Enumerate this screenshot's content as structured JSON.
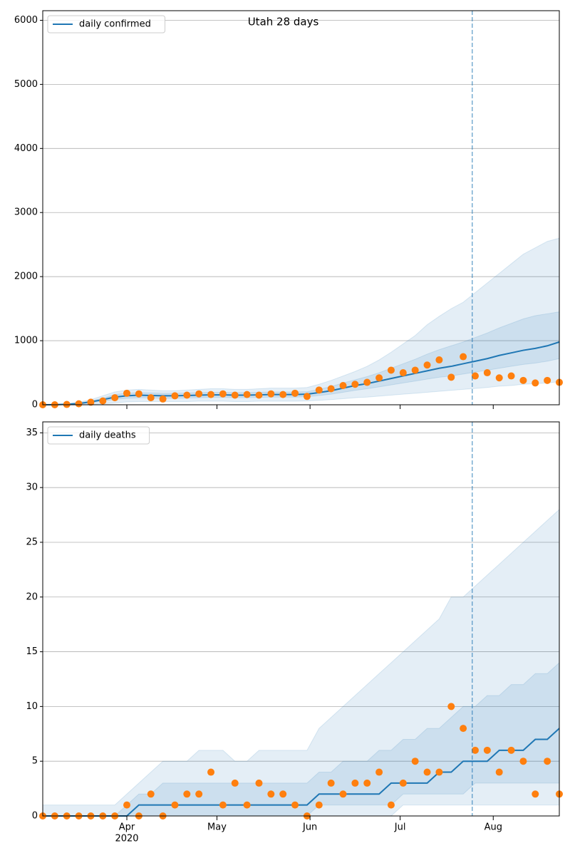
{
  "chart_data": [
    {
      "type": "line",
      "title": "Utah 28 days",
      "x": [
        64,
        68,
        72,
        76,
        80,
        84,
        88,
        92,
        96,
        100,
        104,
        108,
        112,
        116,
        120,
        124,
        128,
        132,
        136,
        140,
        144,
        148,
        152,
        156,
        160,
        164,
        168,
        172,
        176,
        180,
        184,
        188,
        192,
        196,
        200,
        204,
        208,
        212,
        216,
        220,
        224,
        228,
        232,
        236
      ],
      "xlim": [
        64,
        236
      ],
      "xticks": [
        92,
        122,
        153,
        183,
        214
      ],
      "ylim": [
        0,
        6150
      ],
      "yticks": [
        0,
        1000,
        2000,
        3000,
        4000,
        5000,
        6000
      ],
      "grid": true,
      "legend": "upper left",
      "forecast_start": 207,
      "series": [
        {
          "name": "daily confirmed",
          "color": "#1f77b4",
          "values": [
            0,
            2,
            8,
            20,
            45,
            80,
            120,
            140,
            150,
            145,
            140,
            140,
            145,
            150,
            155,
            155,
            150,
            150,
            155,
            160,
            160,
            160,
            165,
            190,
            220,
            260,
            300,
            330,
            370,
            410,
            450,
            490,
            530,
            570,
            600,
            640,
            680,
            720,
            770,
            810,
            850,
            880,
            920,
            980
          ]
        }
      ],
      "observed": {
        "color": "#ff7f0e",
        "values": [
          0,
          0,
          5,
          15,
          40,
          60,
          110,
          180,
          170,
          110,
          90,
          140,
          150,
          170,
          160,
          170,
          150,
          160,
          150,
          170,
          160,
          180,
          130,
          230,
          250,
          300,
          320,
          350,
          420,
          540,
          500,
          540,
          620,
          700,
          430,
          750,
          450,
          500,
          420,
          450,
          380,
          340,
          380,
          350
        ]
      },
      "bands": [
        {
          "color": "#1f77b4",
          "upper": [
            0,
            5,
            15,
            40,
            80,
            140,
            200,
            230,
            240,
            230,
            220,
            220,
            230,
            240,
            250,
            250,
            240,
            240,
            250,
            260,
            260,
            260,
            270,
            320,
            380,
            450,
            520,
            600,
            700,
            820,
            950,
            1080,
            1250,
            1380,
            1500,
            1600,
            1750,
            1900,
            2050,
            2200,
            2350,
            2450,
            2550,
            2600
          ],
          "lower": [
            0,
            0,
            0,
            0,
            5,
            15,
            30,
            45,
            50,
            50,
            50,
            50,
            50,
            55,
            55,
            55,
            50,
            50,
            55,
            55,
            55,
            55,
            60,
            70,
            80,
            95,
            110,
            120,
            135,
            150,
            165,
            180,
            195,
            210,
            225,
            240,
            255,
            270,
            290,
            300,
            320,
            330,
            340,
            360
          ]
        },
        {
          "color": "#1f77b4",
          "upper": [
            0,
            3,
            10,
            28,
            60,
            100,
            160,
            180,
            190,
            185,
            180,
            180,
            185,
            190,
            195,
            195,
            190,
            190,
            195,
            200,
            200,
            200,
            205,
            240,
            285,
            340,
            390,
            440,
            500,
            570,
            640,
            710,
            790,
            860,
            920,
            980,
            1050,
            1120,
            1200,
            1270,
            1340,
            1390,
            1420,
            1450
          ],
          "lower": [
            0,
            1,
            5,
            13,
            30,
            55,
            85,
            100,
            110,
            105,
            100,
            100,
            105,
            110,
            115,
            115,
            110,
            110,
            115,
            120,
            120,
            120,
            125,
            145,
            165,
            195,
            225,
            250,
            280,
            310,
            340,
            370,
            400,
            430,
            450,
            480,
            510,
            540,
            570,
            600,
            630,
            650,
            680,
            720
          ]
        }
      ]
    },
    {
      "type": "line",
      "x": [
        64,
        68,
        72,
        76,
        80,
        84,
        88,
        92,
        96,
        100,
        104,
        108,
        112,
        116,
        120,
        124,
        128,
        132,
        136,
        140,
        144,
        148,
        152,
        156,
        160,
        164,
        168,
        172,
        176,
        180,
        184,
        188,
        192,
        196,
        200,
        204,
        208,
        212,
        216,
        220,
        224,
        228,
        232,
        236
      ],
      "xlim": [
        64,
        236
      ],
      "xticks": [
        {
          "value": 92,
          "label": "Apr"
        },
        {
          "value": 122,
          "label": "May"
        },
        {
          "value": 153,
          "label": "Jun"
        },
        {
          "value": 183,
          "label": "Jul"
        },
        {
          "value": 214,
          "label": "Aug"
        }
      ],
      "x_offset_label": "2020",
      "ylim": [
        0,
        36
      ],
      "yticks": [
        0,
        5,
        10,
        15,
        20,
        25,
        30,
        35
      ],
      "grid": true,
      "legend": "upper left",
      "forecast_start": 207,
      "series": [
        {
          "name": "daily deaths",
          "color": "#1f77b4",
          "values": [
            0,
            0,
            0,
            0,
            0,
            0,
            0,
            0,
            1,
            1,
            1,
            1,
            1,
            1,
            1,
            1,
            1,
            1,
            1,
            1,
            1,
            1,
            1,
            2,
            2,
            2,
            2,
            2,
            2,
            3,
            3,
            3,
            3,
            4,
            4,
            5,
            5,
            5,
            6,
            6,
            6,
            7,
            7,
            8
          ]
        }
      ],
      "observed": {
        "color": "#ff7f0e",
        "values": [
          0,
          0,
          0,
          0,
          0,
          0,
          0,
          1,
          0,
          2,
          0,
          1,
          2,
          2,
          4,
          1,
          3,
          1,
          3,
          2,
          2,
          1,
          0,
          1,
          3,
          2,
          3,
          3,
          4,
          1,
          3,
          5,
          4,
          4,
          10,
          8,
          6,
          6,
          4,
          6,
          5,
          2,
          5,
          2
        ]
      },
      "bands": [
        {
          "color": "#1f77b4",
          "upper": [
            1,
            1,
            1,
            1,
            1,
            1,
            1,
            2,
            3,
            4,
            5,
            5,
            5,
            6,
            6,
            6,
            5,
            5,
            6,
            6,
            6,
            6,
            6,
            8,
            9,
            10,
            11,
            12,
            13,
            14,
            15,
            16,
            17,
            18,
            20,
            20,
            21,
            22,
            23,
            24,
            25,
            26,
            27,
            28
          ],
          "lower": [
            0,
            0,
            0,
            0,
            0,
            0,
            0,
            0,
            0,
            0,
            0,
            0,
            0,
            0,
            0,
            0,
            0,
            0,
            0,
            0,
            0,
            0,
            0,
            0,
            0,
            0,
            0,
            0,
            0,
            0,
            1,
            1,
            1,
            1,
            1,
            1,
            1,
            1,
            1,
            1,
            1,
            1,
            1,
            1
          ]
        },
        {
          "color": "#1f77b4",
          "upper": [
            0,
            0,
            0,
            0,
            0,
            0,
            0,
            1,
            2,
            2,
            3,
            3,
            3,
            3,
            3,
            3,
            3,
            3,
            3,
            3,
            3,
            3,
            3,
            4,
            4,
            5,
            5,
            5,
            6,
            6,
            7,
            7,
            8,
            8,
            9,
            10,
            10,
            11,
            11,
            12,
            12,
            13,
            13,
            14
          ],
          "lower": [
            0,
            0,
            0,
            0,
            0,
            0,
            0,
            0,
            0,
            0,
            0,
            0,
            0,
            0,
            0,
            0,
            0,
            0,
            0,
            0,
            0,
            0,
            0,
            1,
            1,
            1,
            1,
            1,
            1,
            1,
            2,
            2,
            2,
            2,
            2,
            2,
            3,
            3,
            3,
            3,
            3,
            3,
            3,
            3
          ]
        }
      ]
    }
  ]
}
